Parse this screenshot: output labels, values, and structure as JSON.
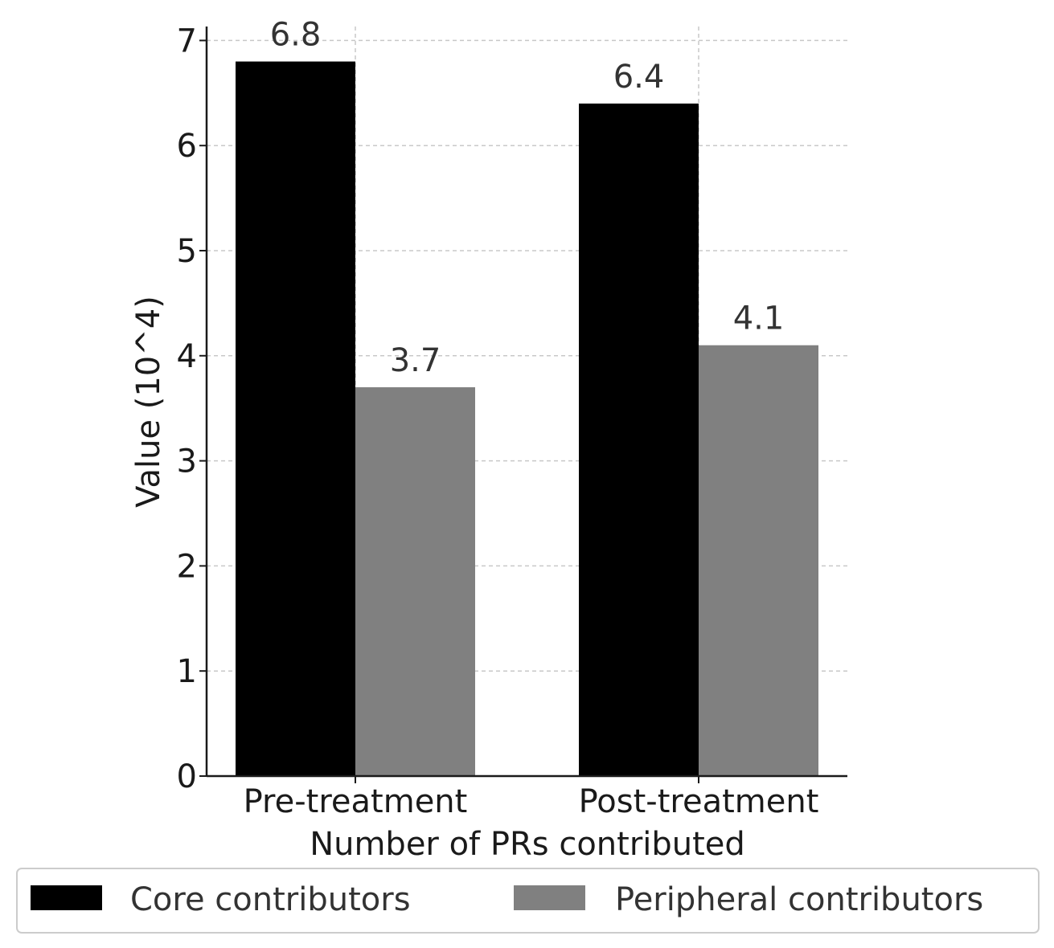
{
  "chart_data": {
    "type": "bar",
    "title": "",
    "xlabel": "Number of PRs contributed",
    "ylabel": "Value (10^4)",
    "categories": [
      "Pre-treatment",
      "Post-treatment"
    ],
    "series": [
      {
        "name": "Core contributors",
        "values": [
          6.8,
          6.4
        ],
        "labels": [
          "6.8",
          "6.4"
        ],
        "color": "#000000"
      },
      {
        "name": "Peripheral contributors",
        "values": [
          3.7,
          4.1
        ],
        "labels": [
          "3.7",
          "4.1"
        ],
        "color": "#808080"
      }
    ],
    "ylim": [
      0,
      7.1
    ],
    "yticks": [
      0,
      1,
      2,
      3,
      4,
      5,
      6,
      7
    ],
    "grid": true,
    "legend_position": "bottom-center"
  }
}
